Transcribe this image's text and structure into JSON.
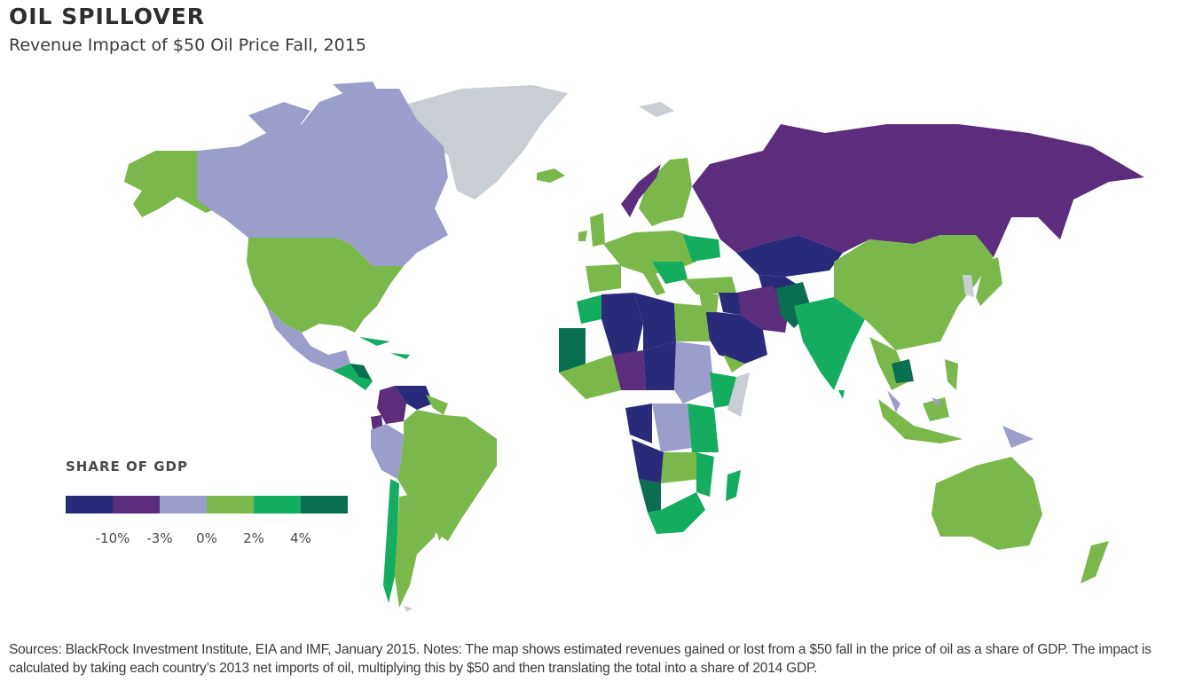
{
  "title": "OIL SPILLOVER",
  "subtitle": "Revenue Impact of $50 Oil Price Fall, 2015",
  "legend": {
    "title": "SHARE OF GDP",
    "colors": [
      "#2a2a7a",
      "#5b2d7c",
      "#9b9ecb",
      "#7bb84c",
      "#14ad5f",
      "#0a6e50"
    ],
    "ticks": [
      "-10%",
      "-3%",
      "0%",
      "2%",
      "4%"
    ]
  },
  "no_data_color": "#c8ced4",
  "notes": "Sources: BlackRock Investment Institute, EIA and IMF, January 2015. Notes: The map shows estimated revenues gained or lost from a $50 fall in the price of oil as a share of GDP. The impact is calculated by taking each country’s 2013 net imports of oil, multiplying this by $50 and then translating the total into a share of 2014 GDP."
}
